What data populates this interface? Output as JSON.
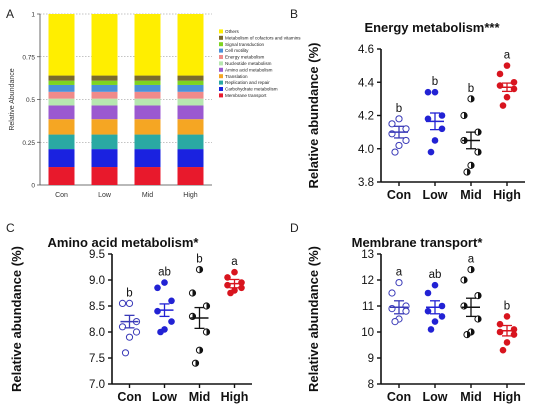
{
  "chart_data": [
    {
      "panel": "A",
      "type": "bar",
      "stacked": true,
      "ylabel": "Relative Abundance",
      "ylim": [
        0,
        1
      ],
      "yticks": [
        "0",
        "0.25",
        "0.5",
        "0.75",
        "1"
      ],
      "categories": [
        "Con",
        "Low",
        "Mid",
        "High"
      ],
      "legend_position": "right",
      "series": [
        {
          "name": "Membrane transport",
          "color": "#e8192c",
          "values": [
            0.105,
            0.105,
            0.105,
            0.105
          ]
        },
        {
          "name": "Carbohydrate metabolism",
          "color": "#1a22e0",
          "values": [
            0.105,
            0.105,
            0.105,
            0.105
          ]
        },
        {
          "name": "Replication and repair",
          "color": "#2aa9a3",
          "values": [
            0.085,
            0.085,
            0.085,
            0.085
          ]
        },
        {
          "name": "Translation",
          "color": "#f5a623",
          "values": [
            0.09,
            0.09,
            0.09,
            0.09
          ]
        },
        {
          "name": "Amino acid metabolism",
          "color": "#9b59d0",
          "values": [
            0.08,
            0.08,
            0.08,
            0.08
          ]
        },
        {
          "name": "Nucleotide metabolism",
          "color": "#b6e7b0",
          "values": [
            0.04,
            0.04,
            0.04,
            0.04
          ]
        },
        {
          "name": "Energy metabolism",
          "color": "#f08a8a",
          "values": [
            0.04,
            0.04,
            0.04,
            0.04
          ]
        },
        {
          "name": "Cell motility",
          "color": "#4a90d9",
          "values": [
            0.04,
            0.04,
            0.04,
            0.04
          ]
        },
        {
          "name": "Signal transduction",
          "color": "#7ed321",
          "values": [
            0.025,
            0.025,
            0.025,
            0.025
          ]
        },
        {
          "name": "Metabolism of cofactors and vitamins",
          "color": "#7a6a2c",
          "values": [
            0.03,
            0.03,
            0.03,
            0.03
          ]
        },
        {
          "name": "Others",
          "color": "#ffee00",
          "values": [
            0.36,
            0.36,
            0.36,
            0.36
          ]
        }
      ]
    },
    {
      "panel": "B",
      "type": "scatter",
      "title": "Energy metabolism***",
      "ylabel": "Relative abundance (%)",
      "ylim": [
        3.8,
        4.6
      ],
      "yticks": [
        "3.8",
        "4.0",
        "4.2",
        "4.4",
        "4.6"
      ],
      "categories": [
        "Con",
        "Low",
        "Mid",
        "High"
      ],
      "letters": [
        "b",
        "b",
        "b",
        "a"
      ],
      "means": [
        4.1,
        4.165,
        4.05,
        4.37
      ],
      "errors": [
        0.035,
        0.05,
        0.05,
        0.025
      ],
      "points": [
        [
          4.15,
          4.18,
          4.12,
          4.09,
          4.05,
          4.02,
          3.98
        ],
        [
          4.34,
          4.34,
          4.2,
          4.18,
          4.12,
          4.05,
          3.98
        ],
        [
          4.3,
          4.2,
          4.1,
          4.05,
          3.98,
          3.9,
          3.86
        ],
        [
          4.5,
          4.45,
          4.4,
          4.38,
          4.36,
          4.31,
          4.26
        ]
      ]
    },
    {
      "panel": "C",
      "type": "scatter",
      "title": "Amino acid metabolism*",
      "ylabel": "Relative abundance (%)",
      "ylim": [
        7.0,
        9.5
      ],
      "yticks": [
        "7.0",
        "7.5",
        "8.0",
        "8.5",
        "9.0",
        "9.5"
      ],
      "categories": [
        "Con",
        "Low",
        "Mid",
        "High"
      ],
      "letters": [
        "b",
        "ab",
        "b",
        "a"
      ],
      "means": [
        8.2,
        8.42,
        8.27,
        8.93
      ],
      "errors": [
        0.12,
        0.12,
        0.2,
        0.08
      ],
      "points": [
        [
          8.55,
          8.55,
          8.2,
          8.1,
          8.0,
          7.9,
          7.6
        ],
        [
          8.95,
          8.85,
          8.6,
          8.4,
          8.2,
          8.05,
          8.0
        ],
        [
          9.2,
          8.75,
          8.5,
          8.3,
          8.0,
          7.65,
          7.4
        ],
        [
          9.15,
          9.05,
          8.95,
          8.9,
          8.85,
          8.8,
          8.75
        ]
      ]
    },
    {
      "panel": "D",
      "type": "scatter",
      "title": "Membrane transport*",
      "ylabel": "Relative abundance (%)",
      "ylim": [
        8,
        13
      ],
      "yticks": [
        "8",
        "9",
        "10",
        "11",
        "12",
        "13"
      ],
      "categories": [
        "Con",
        "Low",
        "Mid",
        "High"
      ],
      "letters": [
        "a",
        "ab",
        "a",
        "b"
      ],
      "means": [
        10.95,
        10.95,
        10.95,
        10.05
      ],
      "errors": [
        0.25,
        0.25,
        0.35,
        0.2
      ],
      "points": [
        [
          11.9,
          11.5,
          11.0,
          10.9,
          10.8,
          10.5,
          10.4
        ],
        [
          11.8,
          11.5,
          11.0,
          10.8,
          10.6,
          10.4,
          10.1
        ],
        [
          12.4,
          12.0,
          11.4,
          11.0,
          10.5,
          10.0,
          9.9
        ],
        [
          10.6,
          10.3,
          10.1,
          10.0,
          9.9,
          9.6,
          9.3
        ]
      ]
    }
  ],
  "panel_labels": [
    "A",
    "B",
    "C",
    "D"
  ],
  "group_colors": {
    "Con": "#3a3ab8",
    "Low": "#2222d4",
    "Mid": "#111111",
    "High": "#d8141e"
  },
  "group_styles": {
    "Con": "open",
    "Low": "filled",
    "Mid": "half",
    "High": "filled"
  }
}
